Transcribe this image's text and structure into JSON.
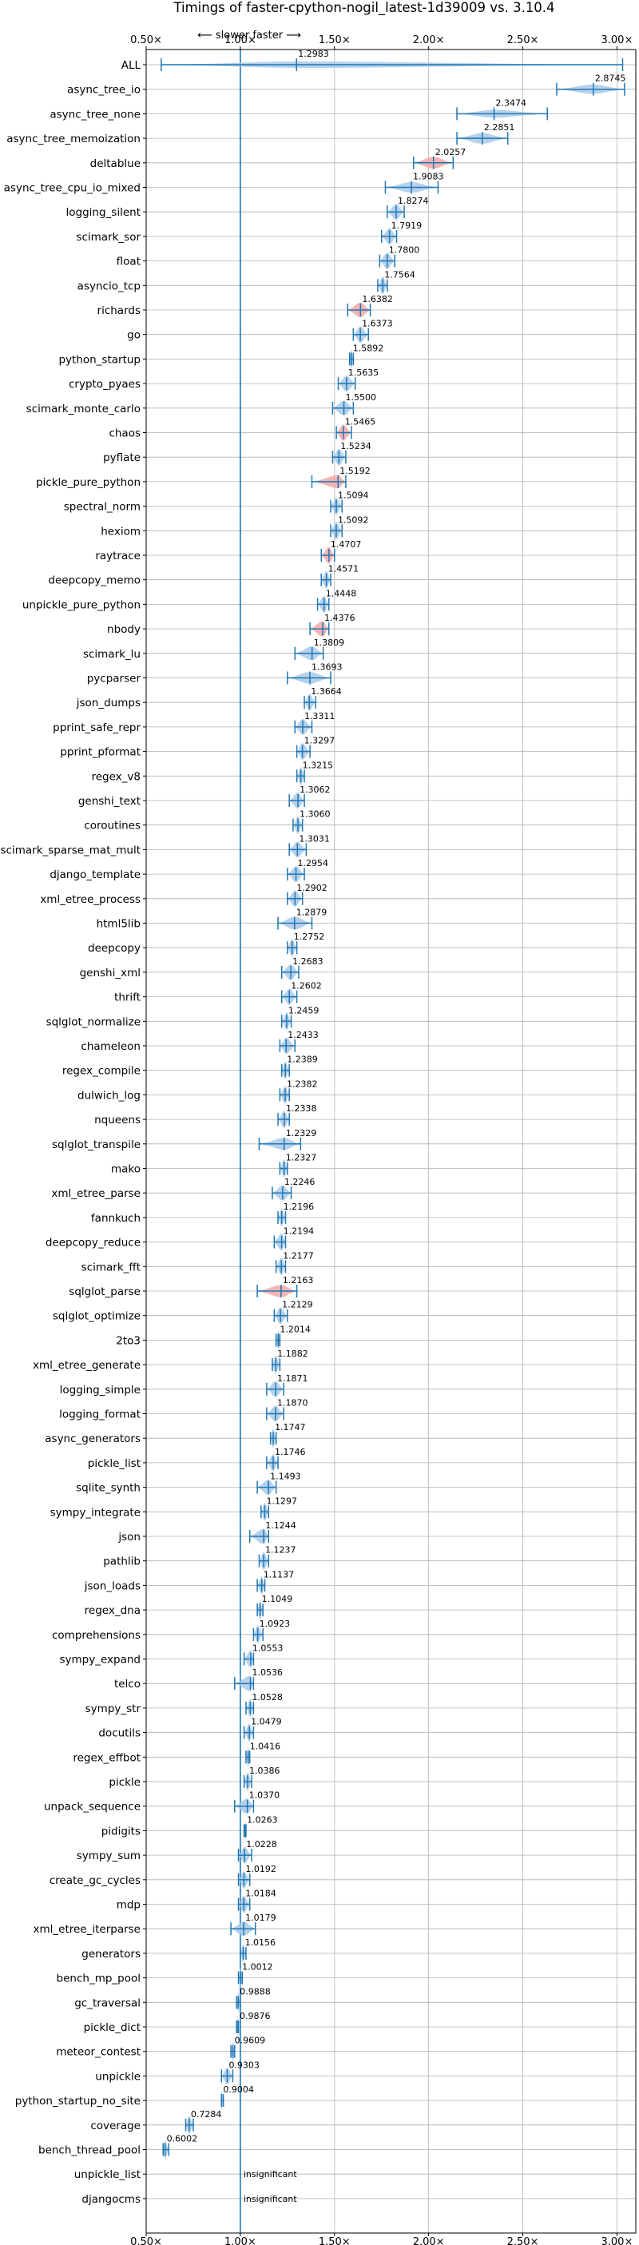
{
  "chart_data": {
    "type": "violin",
    "title": "Timings of faster-cpython-nogil_latest-1d39009 vs. 3.10.4",
    "direction_label": "⟵ slower   faster ⟶",
    "xlim": [
      0.5,
      3.1
    ],
    "x_ticks": [
      0.5,
      1.0,
      1.5,
      2.0,
      2.5,
      3.0
    ],
    "x_tick_labels": [
      "0.50×",
      "1.00×",
      "1.50×",
      "2.00×",
      "2.50×",
      "3.00×"
    ],
    "reference_line": 1.0,
    "grid": true,
    "categories": [
      "ALL",
      "async_tree_io",
      "async_tree_none",
      "async_tree_memoization",
      "deltablue",
      "async_tree_cpu_io_mixed",
      "logging_silent",
      "scimark_sor",
      "float",
      "asyncio_tcp",
      "richards",
      "go",
      "python_startup",
      "crypto_pyaes",
      "scimark_monte_carlo",
      "chaos",
      "pyflate",
      "pickle_pure_python",
      "spectral_norm",
      "hexiom",
      "raytrace",
      "deepcopy_memo",
      "unpickle_pure_python",
      "nbody",
      "scimark_lu",
      "pycparser",
      "json_dumps",
      "pprint_safe_repr",
      "pprint_pformat",
      "regex_v8",
      "genshi_text",
      "coroutines",
      "scimark_sparse_mat_mult",
      "django_template",
      "xml_etree_process",
      "html5lib",
      "deepcopy",
      "genshi_xml",
      "thrift",
      "sqlglot_normalize",
      "chameleon",
      "regex_compile",
      "dulwich_log",
      "nqueens",
      "sqlglot_transpile",
      "mako",
      "xml_etree_parse",
      "fannkuch",
      "deepcopy_reduce",
      "scimark_fft",
      "sqlglot_parse",
      "sqlglot_optimize",
      "2to3",
      "xml_etree_generate",
      "logging_simple",
      "logging_format",
      "async_generators",
      "pickle_list",
      "sqlite_synth",
      "sympy_integrate",
      "json",
      "pathlib",
      "json_loads",
      "regex_dna",
      "comprehensions",
      "sympy_expand",
      "telco",
      "sympy_str",
      "docutils",
      "regex_effbot",
      "pickle",
      "unpack_sequence",
      "pidigits",
      "sympy_sum",
      "create_gc_cycles",
      "mdp",
      "xml_etree_iterparse",
      "generators",
      "bench_mp_pool",
      "gc_traversal",
      "pickle_dict",
      "meteor_contest",
      "unpickle",
      "python_startup_no_site",
      "coverage",
      "bench_thread_pool",
      "unpickle_list",
      "djangocms"
    ],
    "values": [
      1.2983,
      2.8745,
      2.3474,
      2.2851,
      2.0257,
      1.9083,
      1.8274,
      1.7919,
      1.78,
      1.7564,
      1.6382,
      1.6373,
      1.5892,
      1.5635,
      1.55,
      1.5465,
      1.5234,
      1.5192,
      1.5094,
      1.5092,
      1.4707,
      1.4571,
      1.4448,
      1.4376,
      1.3809,
      1.3693,
      1.3664,
      1.3311,
      1.3297,
      1.3215,
      1.3062,
      1.306,
      1.3031,
      1.2954,
      1.2902,
      1.2879,
      1.2752,
      1.2683,
      1.2602,
      1.2459,
      1.2433,
      1.2389,
      1.2382,
      1.2338,
      1.2329,
      1.2327,
      1.2246,
      1.2196,
      1.2194,
      1.2177,
      1.2163,
      1.2129,
      1.2014,
      1.1882,
      1.1871,
      1.187,
      1.1747,
      1.1746,
      1.1493,
      1.1297,
      1.1244,
      1.1237,
      1.1137,
      1.1049,
      1.0923,
      1.0553,
      1.0536,
      1.0528,
      1.0479,
      1.0416,
      1.0386,
      1.037,
      1.0263,
      1.0228,
      1.0192,
      1.0184,
      1.0179,
      1.0156,
      1.0012,
      0.9888,
      0.9876,
      0.9609,
      0.9303,
      0.9004,
      0.7284,
      0.6002,
      null,
      null
    ],
    "value_labels": [
      "1.2983",
      "2.8745",
      "2.3474",
      "2.2851",
      "2.0257",
      "1.9083",
      "1.8274",
      "1.7919",
      "1.7800",
      "1.7564",
      "1.6382",
      "1.6373",
      "1.5892",
      "1.5635",
      "1.5500",
      "1.5465",
      "1.5234",
      "1.5192",
      "1.5094",
      "1.5092",
      "1.4707",
      "1.4571",
      "1.4448",
      "1.4376",
      "1.3809",
      "1.3693",
      "1.3664",
      "1.3311",
      "1.3297",
      "1.3215",
      "1.3062",
      "1.3060",
      "1.3031",
      "1.2954",
      "1.2902",
      "1.2879",
      "1.2752",
      "1.2683",
      "1.2602",
      "1.2459",
      "1.2433",
      "1.2389",
      "1.2382",
      "1.2338",
      "1.2329",
      "1.2327",
      "1.2246",
      "1.2196",
      "1.2194",
      "1.2177",
      "1.2163",
      "1.2129",
      "1.2014",
      "1.1882",
      "1.1871",
      "1.1870",
      "1.1747",
      "1.1746",
      "1.1493",
      "1.1297",
      "1.1244",
      "1.1237",
      "1.1137",
      "1.1049",
      "1.0923",
      "1.0553",
      "1.0536",
      "1.0528",
      "1.0479",
      "1.0416",
      "1.0386",
      "1.0370",
      "1.0263",
      "1.0228",
      "1.0192",
      "1.0184",
      "1.0179",
      "1.0156",
      "1.0012",
      "0.9888",
      "0.9876",
      "0.9609",
      "0.9303",
      "0.9004",
      "0.7284",
      "0.6002",
      "insignificant",
      "insignificant"
    ],
    "spread_low": [
      0.58,
      2.68,
      2.15,
      2.15,
      1.92,
      1.77,
      1.78,
      1.75,
      1.74,
      1.73,
      1.57,
      1.6,
      1.58,
      1.52,
      1.49,
      1.51,
      1.49,
      1.38,
      1.48,
      1.48,
      1.43,
      1.43,
      1.41,
      1.37,
      1.29,
      1.25,
      1.34,
      1.29,
      1.3,
      1.3,
      1.26,
      1.28,
      1.26,
      1.25,
      1.25,
      1.2,
      1.25,
      1.22,
      1.22,
      1.22,
      1.21,
      1.22,
      1.21,
      1.2,
      1.1,
      1.21,
      1.17,
      1.2,
      1.18,
      1.19,
      1.09,
      1.18,
      1.19,
      1.17,
      1.14,
      1.14,
      1.16,
      1.14,
      1.09,
      1.11,
      1.05,
      1.1,
      1.09,
      1.09,
      1.07,
      1.02,
      0.97,
      1.03,
      1.02,
      1.03,
      1.02,
      0.97,
      1.02,
      0.99,
      0.99,
      0.99,
      0.95,
      1.0,
      0.99,
      0.98,
      0.98,
      0.95,
      0.9,
      0.9,
      0.71,
      0.59,
      null,
      null
    ],
    "spread_high": [
      3.03,
      3.04,
      2.63,
      2.42,
      2.13,
      2.05,
      1.87,
      1.83,
      1.82,
      1.78,
      1.69,
      1.68,
      1.6,
      1.61,
      1.6,
      1.59,
      1.56,
      1.56,
      1.54,
      1.54,
      1.5,
      1.48,
      1.47,
      1.47,
      1.44,
      1.48,
      1.4,
      1.38,
      1.37,
      1.34,
      1.34,
      1.33,
      1.35,
      1.34,
      1.33,
      1.38,
      1.3,
      1.31,
      1.3,
      1.27,
      1.29,
      1.26,
      1.26,
      1.26,
      1.32,
      1.25,
      1.27,
      1.24,
      1.24,
      1.24,
      1.3,
      1.25,
      1.21,
      1.21,
      1.23,
      1.23,
      1.19,
      1.2,
      1.19,
      1.15,
      1.15,
      1.15,
      1.13,
      1.12,
      1.12,
      1.07,
      1.07,
      1.07,
      1.07,
      1.05,
      1.06,
      1.07,
      1.03,
      1.06,
      1.05,
      1.05,
      1.08,
      1.03,
      1.01,
      1.0,
      0.99,
      0.97,
      0.96,
      0.91,
      0.75,
      0.62,
      null,
      null
    ],
    "highlighted": [
      "deltablue",
      "richards",
      "chaos",
      "pickle_pure_python",
      "raytrace",
      "nbody",
      "sqlglot_parse"
    ],
    "colors": {
      "violin": "#a9c9e8",
      "line": "#1f77b4",
      "highlight": "#f4a7a7",
      "grid": "#b0b0b0",
      "axes": "#000000"
    }
  }
}
